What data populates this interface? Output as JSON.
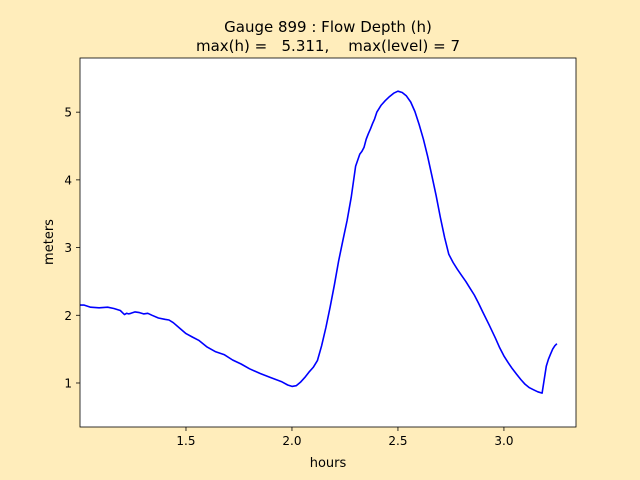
{
  "figure": {
    "background": "#ffedbb",
    "axes_background": "#ffffff"
  },
  "chart_data": {
    "type": "line",
    "title": "Gauge 899 : Flow Depth (h)",
    "subtitle": "max(h) =   5.311,    max(level) = 7",
    "xlabel": "hours",
    "ylabel": "meters",
    "xlim": [
      1.0,
      3.34
    ],
    "ylim": [
      0.35,
      5.8
    ],
    "xticks": [
      1.5,
      2.0,
      2.5,
      3.0
    ],
    "xtick_labels": [
      "1.5",
      "2.0",
      "2.5",
      "3.0"
    ],
    "yticks": [
      1,
      2,
      3,
      4,
      5
    ],
    "ytick_labels": [
      "1",
      "2",
      "3",
      "4",
      "5"
    ],
    "grid": false,
    "series": [
      {
        "color": "#0000ff",
        "x": [
          1.0,
          1.02,
          1.05,
          1.09,
          1.13,
          1.16,
          1.19,
          1.2,
          1.21,
          1.22,
          1.23,
          1.24,
          1.26,
          1.28,
          1.3,
          1.32,
          1.34,
          1.37,
          1.4,
          1.42,
          1.44,
          1.47,
          1.5,
          1.53,
          1.56,
          1.6,
          1.64,
          1.68,
          1.72,
          1.76,
          1.8,
          1.85,
          1.9,
          1.95,
          1.98,
          2.0,
          2.02,
          2.04,
          2.06,
          2.08,
          2.1,
          2.12,
          2.14,
          2.16,
          2.18,
          2.2,
          2.22,
          2.24,
          2.26,
          2.28,
          2.3,
          2.32,
          2.33,
          2.34,
          2.35,
          2.36,
          2.37,
          2.38,
          2.39,
          2.4,
          2.41,
          2.42,
          2.44,
          2.46,
          2.48,
          2.5,
          2.52,
          2.54,
          2.56,
          2.58,
          2.6,
          2.62,
          2.64,
          2.66,
          2.68,
          2.7,
          2.72,
          2.74,
          2.76,
          2.78,
          2.8,
          2.82,
          2.84,
          2.86,
          2.88,
          2.9,
          2.93,
          2.96,
          2.98,
          3.0,
          3.02,
          3.04,
          3.06,
          3.08,
          3.1,
          3.12,
          3.14,
          3.16,
          3.18,
          3.2,
          3.21,
          3.22,
          3.23,
          3.24,
          3.25
        ],
        "y": [
          2.15,
          2.15,
          2.12,
          2.11,
          2.12,
          2.1,
          2.07,
          2.04,
          2.01,
          2.03,
          2.02,
          2.03,
          2.05,
          2.04,
          2.02,
          2.03,
          2.0,
          1.96,
          1.94,
          1.93,
          1.89,
          1.81,
          1.73,
          1.68,
          1.63,
          1.53,
          1.46,
          1.42,
          1.34,
          1.28,
          1.21,
          1.14,
          1.08,
          1.02,
          0.97,
          0.95,
          0.96,
          1.01,
          1.08,
          1.16,
          1.23,
          1.33,
          1.55,
          1.82,
          2.12,
          2.45,
          2.8,
          3.1,
          3.4,
          3.75,
          4.2,
          4.38,
          4.42,
          4.48,
          4.6,
          4.68,
          4.75,
          4.83,
          4.9,
          5.0,
          5.05,
          5.1,
          5.17,
          5.23,
          5.28,
          5.31,
          5.29,
          5.24,
          5.15,
          5.01,
          4.82,
          4.6,
          4.35,
          4.06,
          3.77,
          3.45,
          3.15,
          2.9,
          2.78,
          2.68,
          2.59,
          2.5,
          2.4,
          2.3,
          2.18,
          2.05,
          1.86,
          1.66,
          1.52,
          1.4,
          1.3,
          1.21,
          1.13,
          1.05,
          0.98,
          0.93,
          0.9,
          0.87,
          0.85,
          1.25,
          1.35,
          1.43,
          1.5,
          1.55,
          1.58
        ]
      }
    ]
  }
}
